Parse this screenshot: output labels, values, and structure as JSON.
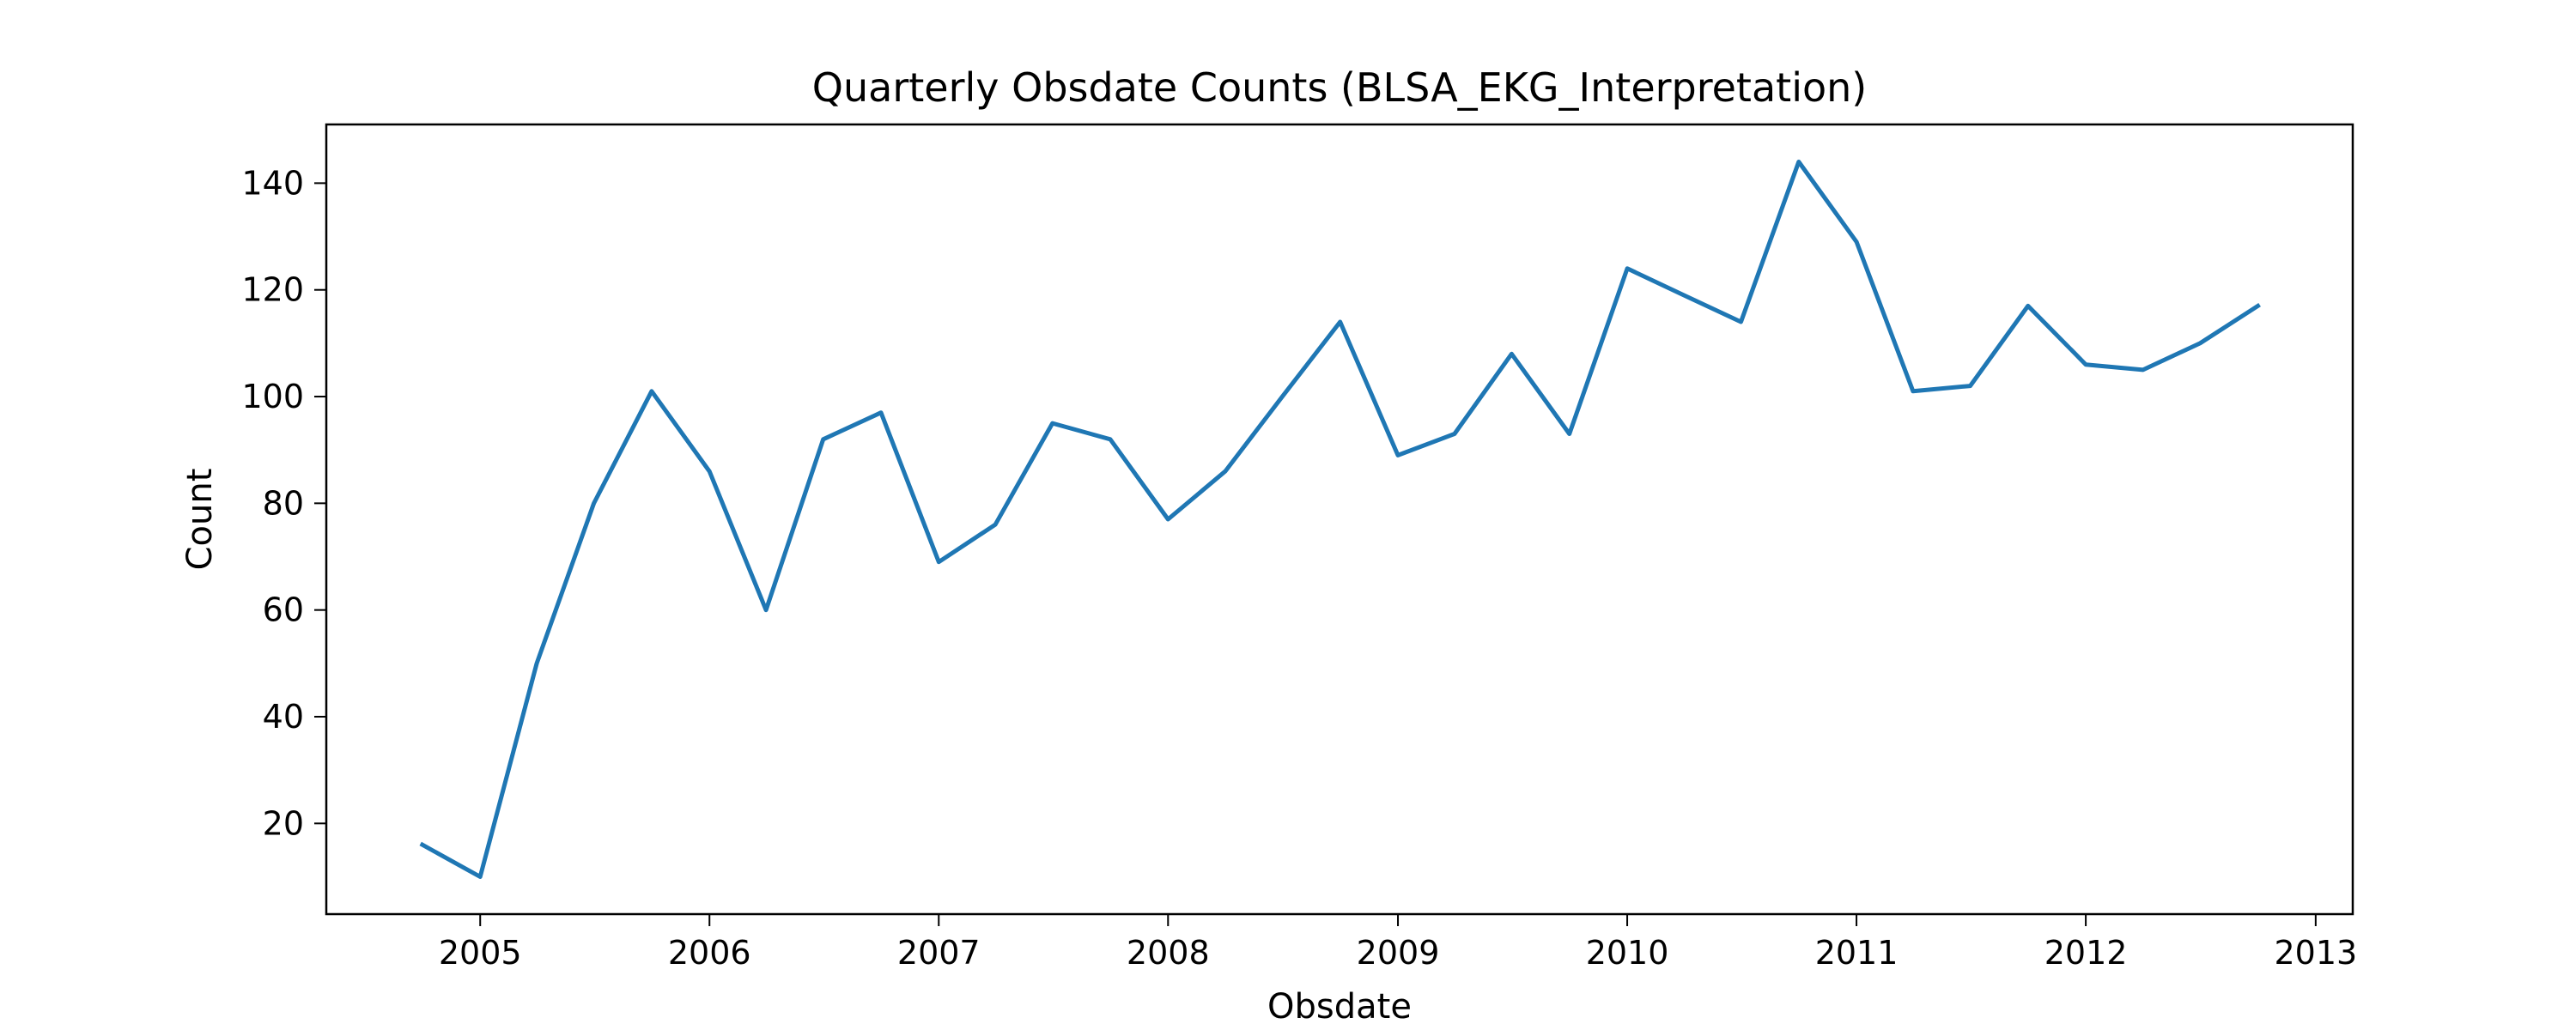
{
  "chart_data": {
    "type": "line",
    "title": "Quarterly Obsdate Counts (BLSA_EKG_Interpretation)",
    "xlabel": "Obsdate",
    "ylabel": "Count",
    "x_ticks": [
      "2005",
      "2006",
      "2007",
      "2008",
      "2009",
      "2010",
      "2011",
      "2012",
      "2013"
    ],
    "y_ticks": [
      20,
      40,
      60,
      80,
      100,
      120,
      140
    ],
    "xlim": [
      "2004-05-01",
      "2013-03-01"
    ],
    "ylim": [
      3,
      151
    ],
    "grid": false,
    "series": [
      {
        "color": "#1f77b4",
        "x": [
          "2004-10-01",
          "2005-01-01",
          "2005-04-01",
          "2005-07-01",
          "2005-10-01",
          "2006-01-01",
          "2006-04-01",
          "2006-07-01",
          "2006-10-01",
          "2007-01-01",
          "2007-04-01",
          "2007-07-01",
          "2007-10-01",
          "2008-01-01",
          "2008-04-01",
          "2008-07-01",
          "2008-10-01",
          "2009-01-01",
          "2009-04-01",
          "2009-07-01",
          "2009-10-01",
          "2010-01-01",
          "2010-04-01",
          "2010-07-01",
          "2010-10-01",
          "2011-01-01",
          "2011-04-01",
          "2011-07-01",
          "2011-10-01",
          "2012-01-01",
          "2012-04-01",
          "2012-07-01",
          "2012-10-01"
        ],
        "values": [
          16,
          10,
          50,
          80,
          101,
          86,
          60,
          92,
          97,
          69,
          76,
          95,
          92,
          77,
          86,
          100,
          114,
          89,
          93,
          108,
          93,
          124,
          119,
          114,
          144,
          129,
          101,
          102,
          117,
          106,
          105,
          110,
          117
        ]
      }
    ]
  }
}
